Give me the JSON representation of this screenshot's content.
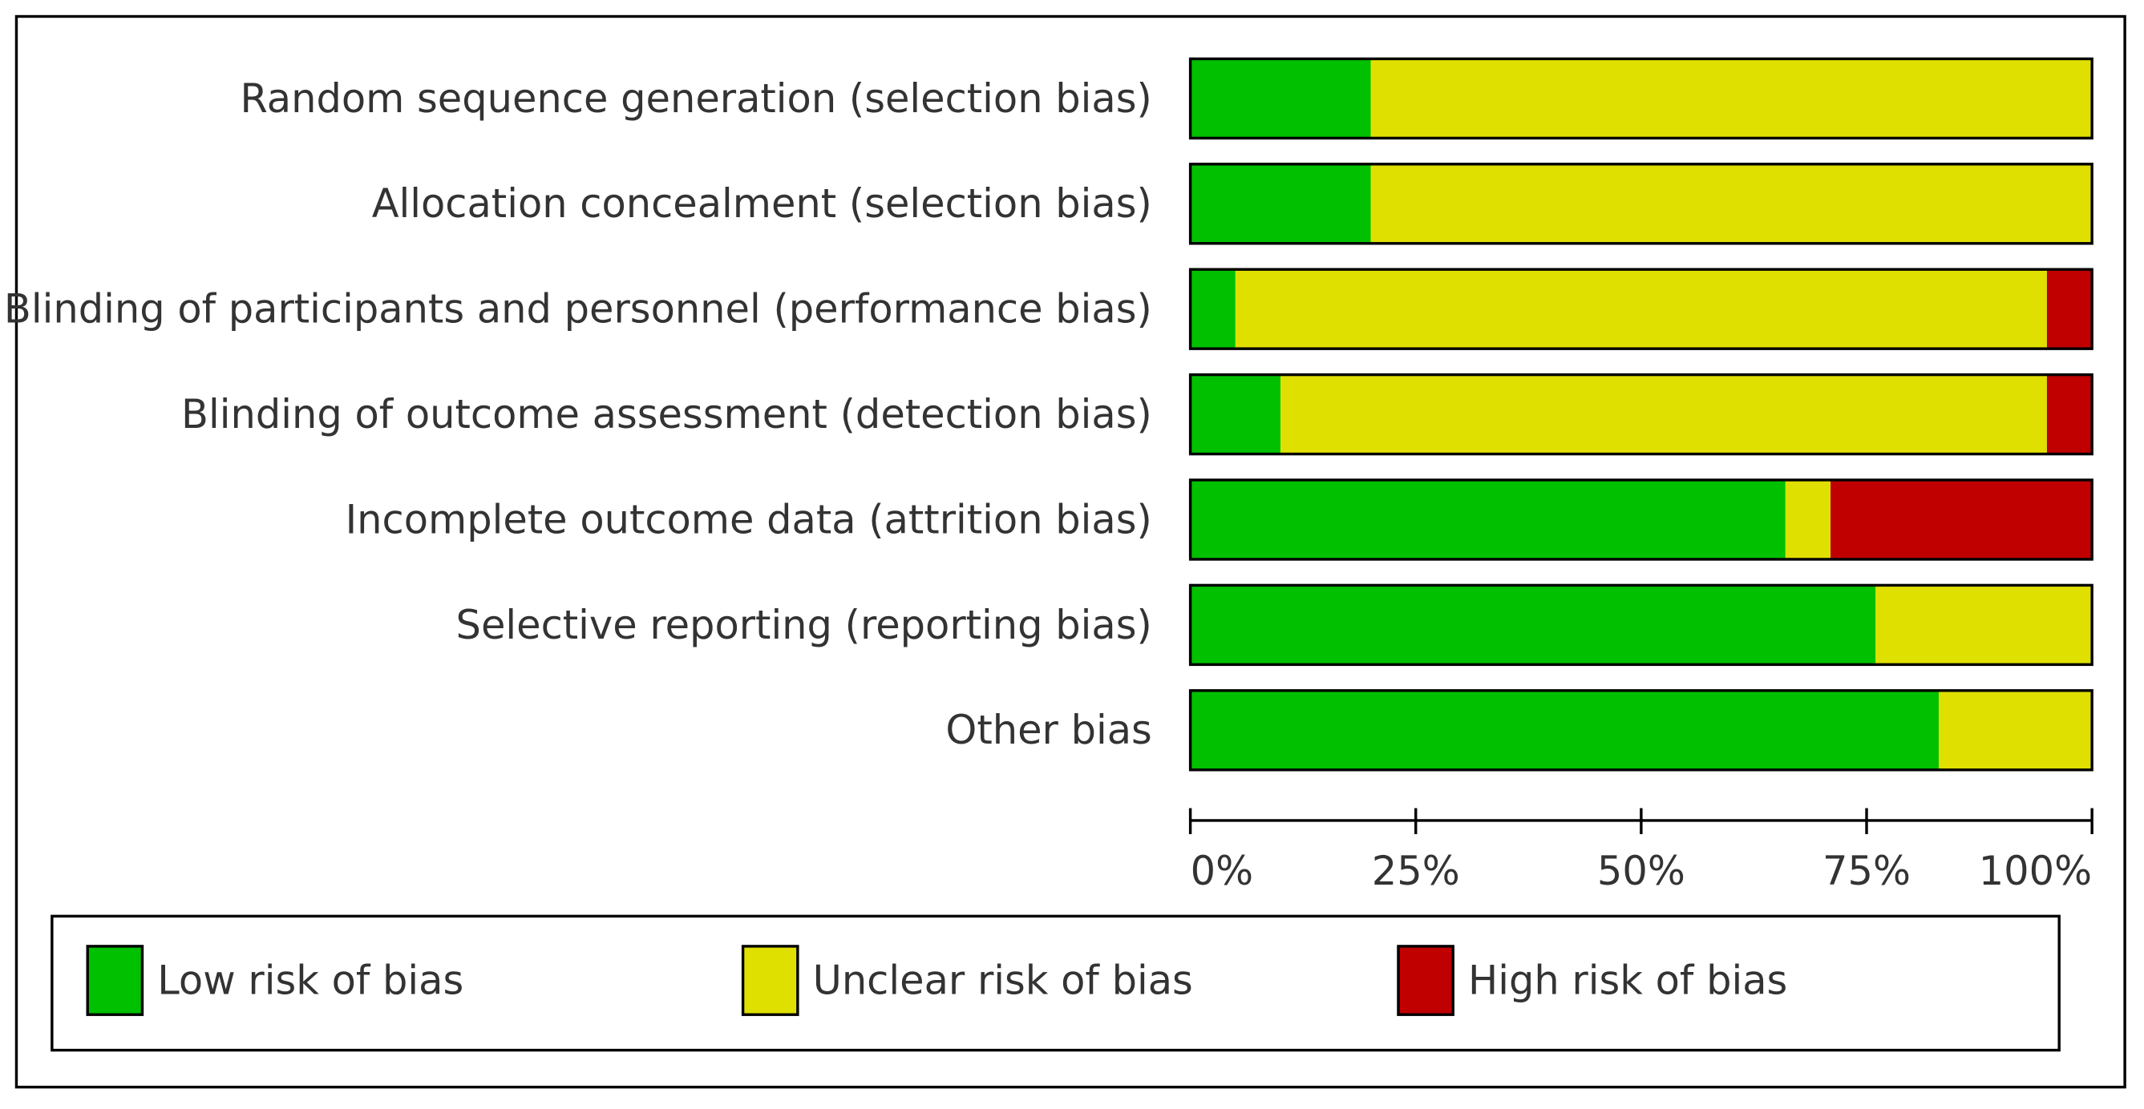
{
  "chart_data": {
    "type": "stacked-bar-horizontal",
    "categories": [
      "Random sequence generation (selection bias)",
      "Allocation concealment (selection bias)",
      "Blinding of participants and personnel (performance bias)",
      "Blinding of outcome assessment (detection bias)",
      "Incomplete outcome data (attrition bias)",
      "Selective reporting (reporting bias)",
      "Other bias"
    ],
    "series": [
      {
        "name": "Low risk of bias",
        "color": "#00c000",
        "values": [
          20,
          20,
          5,
          10,
          66,
          76,
          83
        ]
      },
      {
        "name": "Unclear risk of bias",
        "color": "#e0e000",
        "values": [
          80,
          80,
          90,
          85,
          5,
          24,
          17
        ]
      },
      {
        "name": "High risk of bias",
        "color": "#c00000",
        "values": [
          0,
          0,
          5,
          5,
          29,
          0,
          0
        ]
      }
    ],
    "xlim": [
      0,
      100
    ],
    "xticks": [
      {
        "value": 0,
        "label": "0%"
      },
      {
        "value": 25,
        "label": "25%"
      },
      {
        "value": 50,
        "label": "50%"
      },
      {
        "value": 75,
        "label": "75%"
      },
      {
        "value": 100,
        "label": "100%"
      }
    ],
    "legend": "bottom"
  }
}
